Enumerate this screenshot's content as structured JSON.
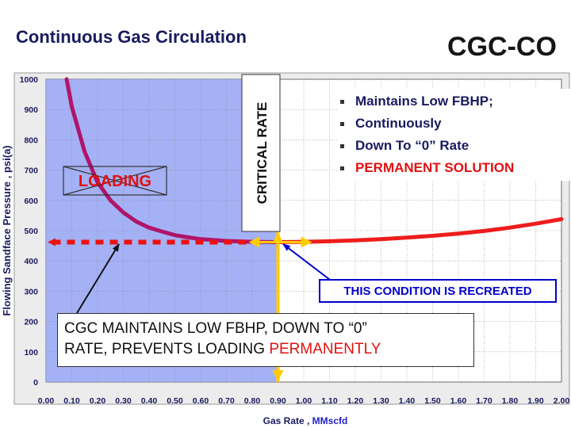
{
  "slide": {
    "title": "Continuous Gas Circulation",
    "badge": "CGC-CO",
    "bullets": [
      {
        "text": "Maintains Low FBHP;",
        "color": "#1a1a60"
      },
      {
        "text": "Continuously",
        "color": "#1a1a60"
      },
      {
        "text": "Down To “0” Rate",
        "color": "#1a1a60"
      },
      {
        "text": "PERMANENT SOLUTION",
        "color": "#e01010"
      }
    ],
    "callout": "THIS CONDITION IS RECREATED",
    "cgc_text_1": "CGC MAINTAINS LOW FBHP, DOWN TO “0”",
    "cgc_text_2": "RATE, PREVENTS LOADING ",
    "cgc_text_3": "PERMANENTLY"
  },
  "chart_data": {
    "type": "line",
    "xlabel_prefix": "Gas Rate , ",
    "xlabel_unit": "MMscfd",
    "ylabel": "Flowing Sandface Pressure , psi(a)",
    "xlim": [
      0,
      2.0
    ],
    "ylim": [
      0,
      1000
    ],
    "x_ticks": [
      "0.00",
      "0.10",
      "0.20",
      "0.30",
      "0.40",
      "0.50",
      "0.60",
      "0.70",
      "0.80",
      "0.90",
      "1.00",
      "1.10",
      "1.20",
      "1.30",
      "1.40",
      "1.50",
      "1.60",
      "1.70",
      "1.80",
      "1.90",
      "2.00"
    ],
    "y_ticks": [
      "0",
      "100",
      "200",
      "300",
      "400",
      "500",
      "600",
      "700",
      "800",
      "900",
      "1000"
    ],
    "grid": true,
    "series": [
      {
        "color": "#b0146a",
        "x": [
          0.08,
          0.1,
          0.15,
          0.2,
          0.25,
          0.3,
          0.35,
          0.4,
          0.45,
          0.5,
          0.55,
          0.6,
          0.7,
          0.8,
          0.9
        ],
        "y": [
          1000,
          910,
          760,
          660,
          600,
          560,
          530,
          510,
          497,
          485,
          478,
          472,
          466,
          463,
          462
        ]
      },
      {
        "color": "#ee1c1c",
        "x": [
          0.9,
          1.0,
          1.1,
          1.2,
          1.3,
          1.4,
          1.5,
          1.6,
          1.7,
          1.8,
          1.9,
          2.0
        ],
        "y": [
          462,
          463,
          465,
          468,
          472,
          477,
          483,
          490,
          499,
          510,
          523,
          538
        ]
      }
    ],
    "critical_rate": 0.9,
    "critical_label": "CRITICAL RATE",
    "loading_label": "LOADING",
    "dotted_level": 462,
    "colors": {
      "loading_zone": "#9aa8f4",
      "critical_line": "#ffcc00",
      "dotted": "#ee1111"
    }
  }
}
